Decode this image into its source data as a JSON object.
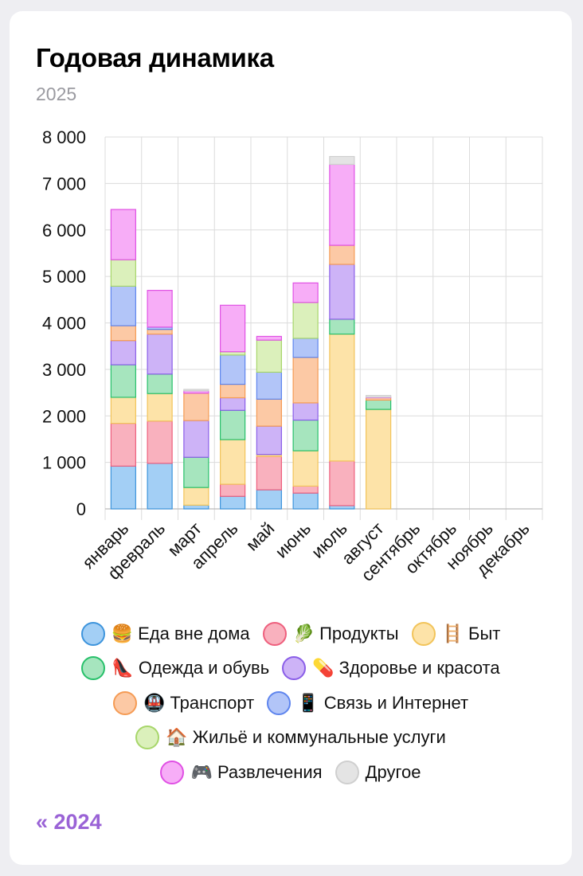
{
  "header": {
    "title": "Годовая динамика",
    "subtitle": "2025"
  },
  "nav": {
    "prev_year_label": "« 2024"
  },
  "chart_data": {
    "type": "bar",
    "stacked": true,
    "categories": [
      "январь",
      "февраль",
      "март",
      "апрель",
      "май",
      "июнь",
      "июль",
      "август",
      "сентябрь",
      "октябрь",
      "ноябрь",
      "декабрь"
    ],
    "y_ticks": [
      "0",
      "1 000",
      "2 000",
      "3 000",
      "4 000",
      "5 000",
      "6 000",
      "7 000",
      "8 000"
    ],
    "ylim": [
      0,
      8000
    ],
    "grid": true,
    "legend_placement": "bottom",
    "series": [
      {
        "name": "🍔 Еда вне дома",
        "fill": "#a3cff5",
        "stroke": "#3d94dc",
        "values": [
          920,
          980,
          80,
          270,
          410,
          340,
          70,
          0,
          0,
          0,
          0,
          0
        ]
      },
      {
        "name": "🥬 Продукты",
        "fill": "#f9b1be",
        "stroke": "#ee5f7d",
        "values": [
          920,
          910,
          0,
          260,
          720,
          150,
          960,
          0,
          0,
          0,
          0,
          0
        ]
      },
      {
        "name": "🪜 Быт",
        "fill": "#fde3a8",
        "stroke": "#f2c45a",
        "values": [
          560,
          590,
          380,
          960,
          40,
          760,
          2730,
          2140,
          0,
          0,
          0,
          0
        ]
      },
      {
        "name": "👠 Одежда и обувь",
        "fill": "#a6e5be",
        "stroke": "#27c06a",
        "values": [
          700,
          420,
          650,
          630,
          0,
          660,
          320,
          200,
          0,
          0,
          0,
          0
        ]
      },
      {
        "name": "💊 Здоровье и красота",
        "fill": "#cdb3f7",
        "stroke": "#8a5ee8",
        "values": [
          520,
          860,
          790,
          270,
          610,
          370,
          1180,
          0,
          0,
          0,
          0,
          0
        ]
      },
      {
        "name": "🚇 Транспорт",
        "fill": "#fcc9a5",
        "stroke": "#f59b54",
        "values": [
          320,
          100,
          590,
          290,
          580,
          980,
          410,
          50,
          0,
          0,
          0,
          0
        ]
      },
      {
        "name": "📱 Связь и Интернет",
        "fill": "#b2c5f8",
        "stroke": "#5e85ee",
        "values": [
          850,
          50,
          0,
          630,
          580,
          410,
          0,
          0,
          0,
          0,
          0,
          0
        ]
      },
      {
        "name": "🏠 Жильё и коммунальные услуги",
        "fill": "#dbf0bb",
        "stroke": "#a7d66a",
        "values": [
          570,
          0,
          0,
          70,
          690,
          770,
          0,
          0,
          0,
          0,
          0,
          0
        ]
      },
      {
        "name": "🎮 Развлечения",
        "fill": "#f7adf7",
        "stroke": "#e050e4",
        "values": [
          1080,
          790,
          50,
          1000,
          80,
          420,
          1740,
          10,
          0,
          0,
          0,
          0
        ]
      },
      {
        "name": "Другое",
        "fill": "#e4e4e4",
        "stroke": "#cfcfcf",
        "values": [
          0,
          0,
          30,
          0,
          0,
          0,
          170,
          40,
          0,
          0,
          0,
          0
        ]
      }
    ]
  }
}
